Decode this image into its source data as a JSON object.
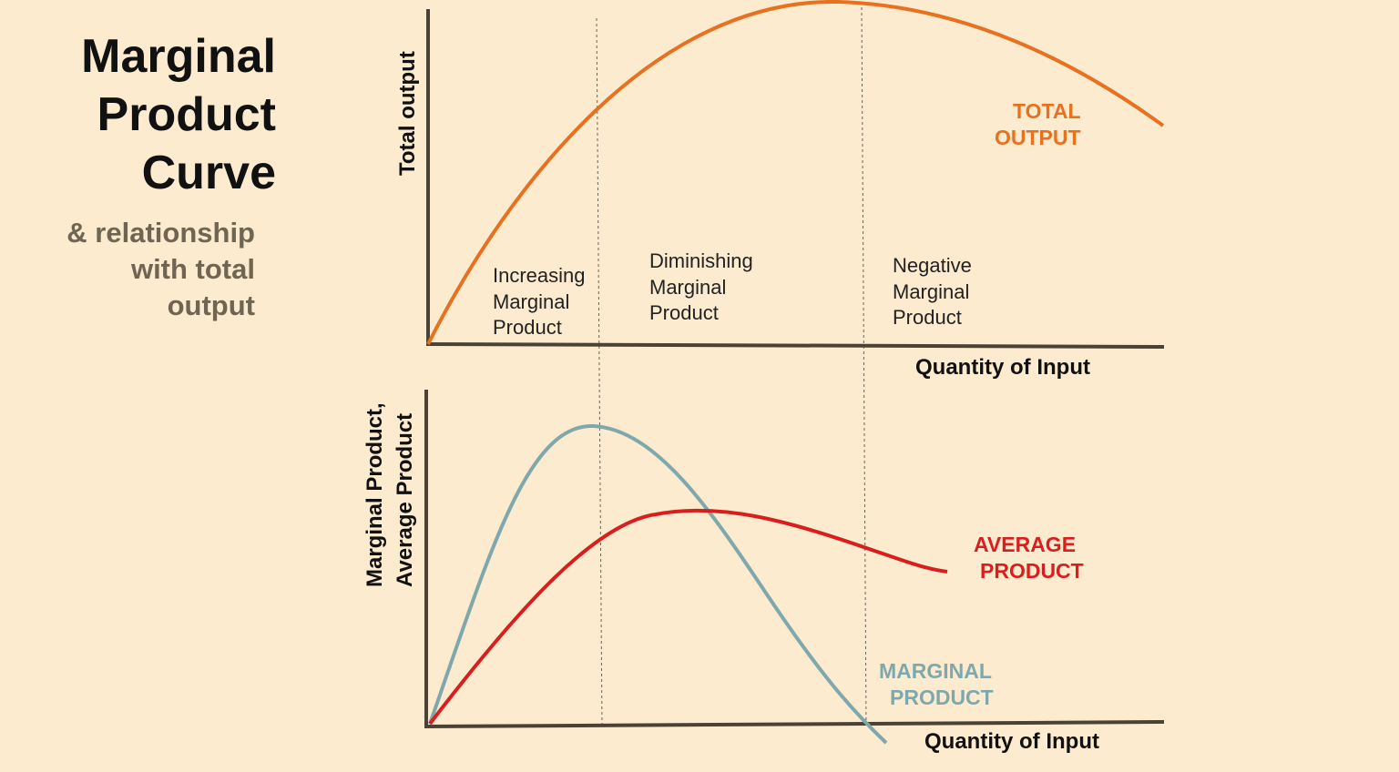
{
  "title": {
    "line1": "Marginal",
    "line2": "Product",
    "line3": "Curve"
  },
  "subtitle": {
    "line1": "& relationship",
    "line2": "with total",
    "line3": "output"
  },
  "top_chart": {
    "ylabel": "Total output",
    "xlabel": "Quantity of Input",
    "curve_label": {
      "line1": "TOTAL",
      "line2": "OUTPUT"
    }
  },
  "stages": {
    "increasing": {
      "line1": "Increasing",
      "line2": "Marginal",
      "line3": "Product"
    },
    "diminishing": {
      "line1": "Diminishing",
      "line2": "Marginal",
      "line3": "Product"
    },
    "negative": {
      "line1": "Negative",
      "line2": "Marginal",
      "line3": "Product"
    }
  },
  "bottom_chart": {
    "ylabel_line1": "Marginal Product,",
    "ylabel_line2": "Average Product",
    "xlabel": "Quantity of Input",
    "average_label": {
      "line1": "AVERAGE",
      "line2": "PRODUCT"
    },
    "marginal_label": {
      "line1": "MARGINAL",
      "line2": "PRODUCT"
    }
  },
  "colors": {
    "background": "#fdebcf",
    "axis": "#4a4237",
    "total_output": "#e8711f",
    "average_product": "#d91e1e",
    "marginal_product": "#7ea8ac",
    "subtitle": "#6f6552"
  }
}
